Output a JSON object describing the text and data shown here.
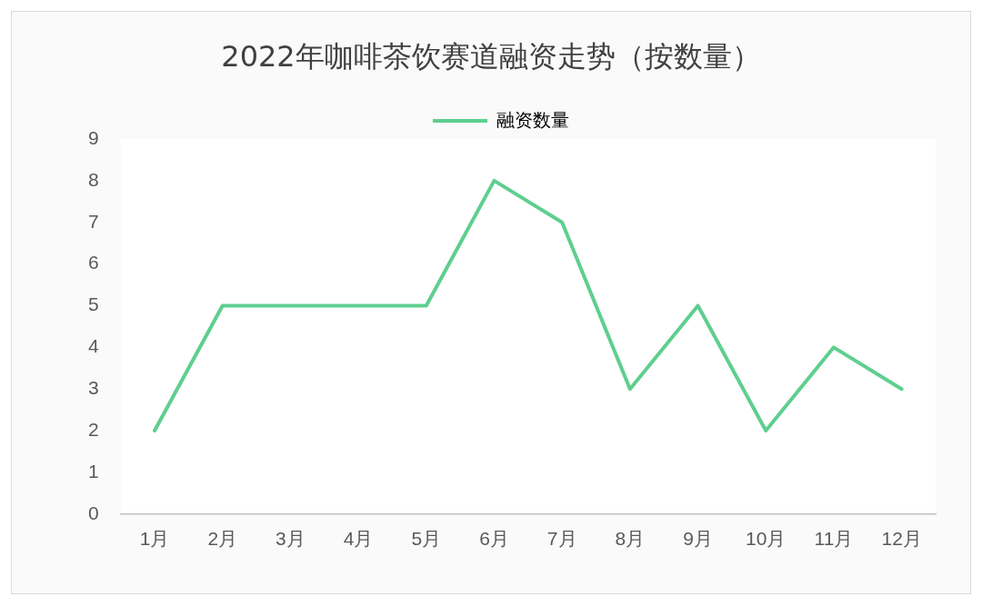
{
  "chart_data": {
    "type": "line",
    "title": "2022年咖啡茶饮赛道融资走势（按数量）",
    "categories": [
      "1月",
      "2月",
      "3月",
      "4月",
      "5月",
      "6月",
      "7月",
      "8月",
      "9月",
      "10月",
      "11月",
      "12月"
    ],
    "series": [
      {
        "name": "融资数量",
        "color": "#5ecf8f",
        "values": [
          2,
          5,
          5,
          5,
          5,
          8,
          7,
          3,
          5,
          2,
          4,
          3
        ]
      }
    ],
    "ylim": [
      0,
      9
    ],
    "yticks": [
      0,
      1,
      2,
      3,
      4,
      5,
      6,
      7,
      8,
      9
    ],
    "grid": false,
    "legend": "top",
    "marker": "none",
    "line_style": "solid"
  }
}
